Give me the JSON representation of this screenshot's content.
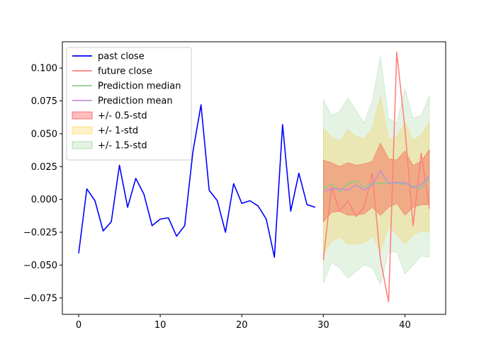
{
  "chart_data": {
    "type": "line",
    "title": "",
    "xlabel": "",
    "ylabel": "",
    "xlim": [
      -2,
      45
    ],
    "ylim": [
      -0.0875,
      0.12
    ],
    "grid": false,
    "legend_position": "top-left",
    "xticks": [
      0,
      10,
      20,
      30,
      40
    ],
    "xtick_labels": [
      "0",
      "10",
      "20",
      "30",
      "40"
    ],
    "yticks": [
      -0.075,
      -0.05,
      -0.025,
      0.0,
      0.025,
      0.05,
      0.075,
      0.1
    ],
    "ytick_labels": [
      "−0.075",
      "−0.050",
      "−0.025",
      "0.000",
      "0.025",
      "0.050",
      "0.075",
      "0.100"
    ],
    "series": [
      {
        "name": "past close",
        "color": "#0000ff",
        "style": "line",
        "x": [
          0,
          1,
          2,
          3,
          4,
          5,
          6,
          7,
          8,
          9,
          10,
          11,
          12,
          13,
          14,
          15,
          16,
          17,
          18,
          19,
          20,
          21,
          22,
          23,
          24,
          25,
          26,
          27,
          28,
          29
        ],
        "y": [
          -0.041,
          0.008,
          -0.001,
          -0.024,
          -0.017,
          0.026,
          -0.006,
          0.016,
          0.004,
          -0.02,
          -0.015,
          -0.014,
          -0.028,
          -0.02,
          0.036,
          0.072,
          0.007,
          -0.001,
          -0.025,
          0.012,
          -0.003,
          -0.001,
          -0.005,
          -0.015,
          -0.044,
          0.057,
          -0.009,
          0.02,
          -0.004,
          -0.006
        ]
      },
      {
        "name": "future close",
        "color": "#ff8080",
        "style": "line",
        "x": [
          30,
          31,
          32,
          33,
          34,
          35,
          36,
          37,
          38,
          39,
          40,
          41,
          42,
          43
        ],
        "y": [
          -0.046,
          0.01,
          -0.009,
          -0.001,
          -0.013,
          -0.006,
          0.02,
          -0.046,
          -0.078,
          0.112,
          0.054,
          -0.02,
          0.035,
          -0.007
        ]
      },
      {
        "name": "Prediction median",
        "color": "#8fc98f",
        "style": "line",
        "x": [
          30,
          31,
          32,
          33,
          34,
          35,
          36,
          37,
          38,
          39,
          40,
          41,
          42,
          43
        ],
        "y": [
          0.008,
          0.012,
          0.006,
          0.012,
          0.014,
          0.009,
          0.012,
          0.012,
          0.013,
          0.012,
          0.012,
          0.01,
          0.008,
          0.017
        ]
      },
      {
        "name": "Prediction mean",
        "color": "#c58fd4",
        "style": "line",
        "x": [
          30,
          31,
          32,
          33,
          34,
          35,
          36,
          37,
          38,
          39,
          40,
          41,
          42,
          43
        ],
        "y": [
          0.006,
          0.008,
          0.008,
          0.007,
          0.011,
          0.007,
          0.011,
          0.022,
          0.012,
          0.013,
          0.013,
          0.009,
          0.011,
          0.018
        ]
      }
    ],
    "bands": [
      {
        "name": "+/- 1.5-std",
        "color": "#2ca02c",
        "opacity": 0.13,
        "x": [
          30,
          31,
          32,
          33,
          34,
          35,
          36,
          37,
          38,
          39,
          40,
          41,
          42,
          43
        ],
        "lower": [
          -0.064,
          -0.048,
          -0.052,
          -0.06,
          -0.055,
          -0.05,
          -0.052,
          -0.065,
          -0.04,
          -0.04,
          -0.057,
          -0.05,
          -0.043,
          -0.044
        ],
        "upper": [
          0.076,
          0.064,
          0.067,
          0.077,
          0.068,
          0.058,
          0.075,
          0.109,
          0.062,
          0.058,
          0.084,
          0.062,
          0.064,
          0.079
        ]
      },
      {
        "name": "+/- 1-std",
        "color": "#ffc107",
        "opacity": 0.22,
        "x": [
          30,
          31,
          32,
          33,
          34,
          35,
          36,
          37,
          38,
          39,
          40,
          41,
          42,
          43
        ],
        "lower": [
          -0.041,
          -0.032,
          -0.029,
          -0.034,
          -0.034,
          -0.033,
          -0.028,
          -0.04,
          -0.021,
          -0.027,
          -0.034,
          -0.027,
          -0.024,
          -0.025
        ],
        "upper": [
          0.054,
          0.048,
          0.044,
          0.053,
          0.048,
          0.046,
          0.054,
          0.079,
          0.046,
          0.048,
          0.059,
          0.045,
          0.049,
          0.059
        ]
      },
      {
        "name": "+/- 0.5-std",
        "color": "#ff0000",
        "opacity": 0.26,
        "x": [
          30,
          31,
          32,
          33,
          34,
          35,
          36,
          37,
          38,
          39,
          40,
          41,
          42,
          43
        ],
        "lower": [
          -0.017,
          -0.01,
          -0.009,
          -0.012,
          -0.012,
          -0.011,
          -0.006,
          -0.012,
          -0.006,
          -0.003,
          -0.012,
          -0.006,
          -0.004,
          -0.004
        ],
        "upper": [
          0.03,
          0.028,
          0.025,
          0.028,
          0.026,
          0.027,
          0.029,
          0.043,
          0.031,
          0.03,
          0.037,
          0.026,
          0.029,
          0.038
        ]
      }
    ],
    "legend": [
      {
        "label": "past close",
        "kind": "line",
        "color": "#0000ff"
      },
      {
        "label": "future close",
        "kind": "line",
        "color": "#ff8080"
      },
      {
        "label": "Prediction median",
        "kind": "line",
        "color": "#8fc98f"
      },
      {
        "label": "Prediction mean",
        "kind": "line",
        "color": "#c58fd4"
      },
      {
        "label": "+/- 0.5-std",
        "kind": "patch",
        "color": "#ff0000",
        "opacity": 0.26
      },
      {
        "label": "+/- 1-std",
        "kind": "patch",
        "color": "#ffc107",
        "opacity": 0.22
      },
      {
        "label": "+/- 1.5-std",
        "kind": "patch",
        "color": "#2ca02c",
        "opacity": 0.13
      }
    ]
  }
}
